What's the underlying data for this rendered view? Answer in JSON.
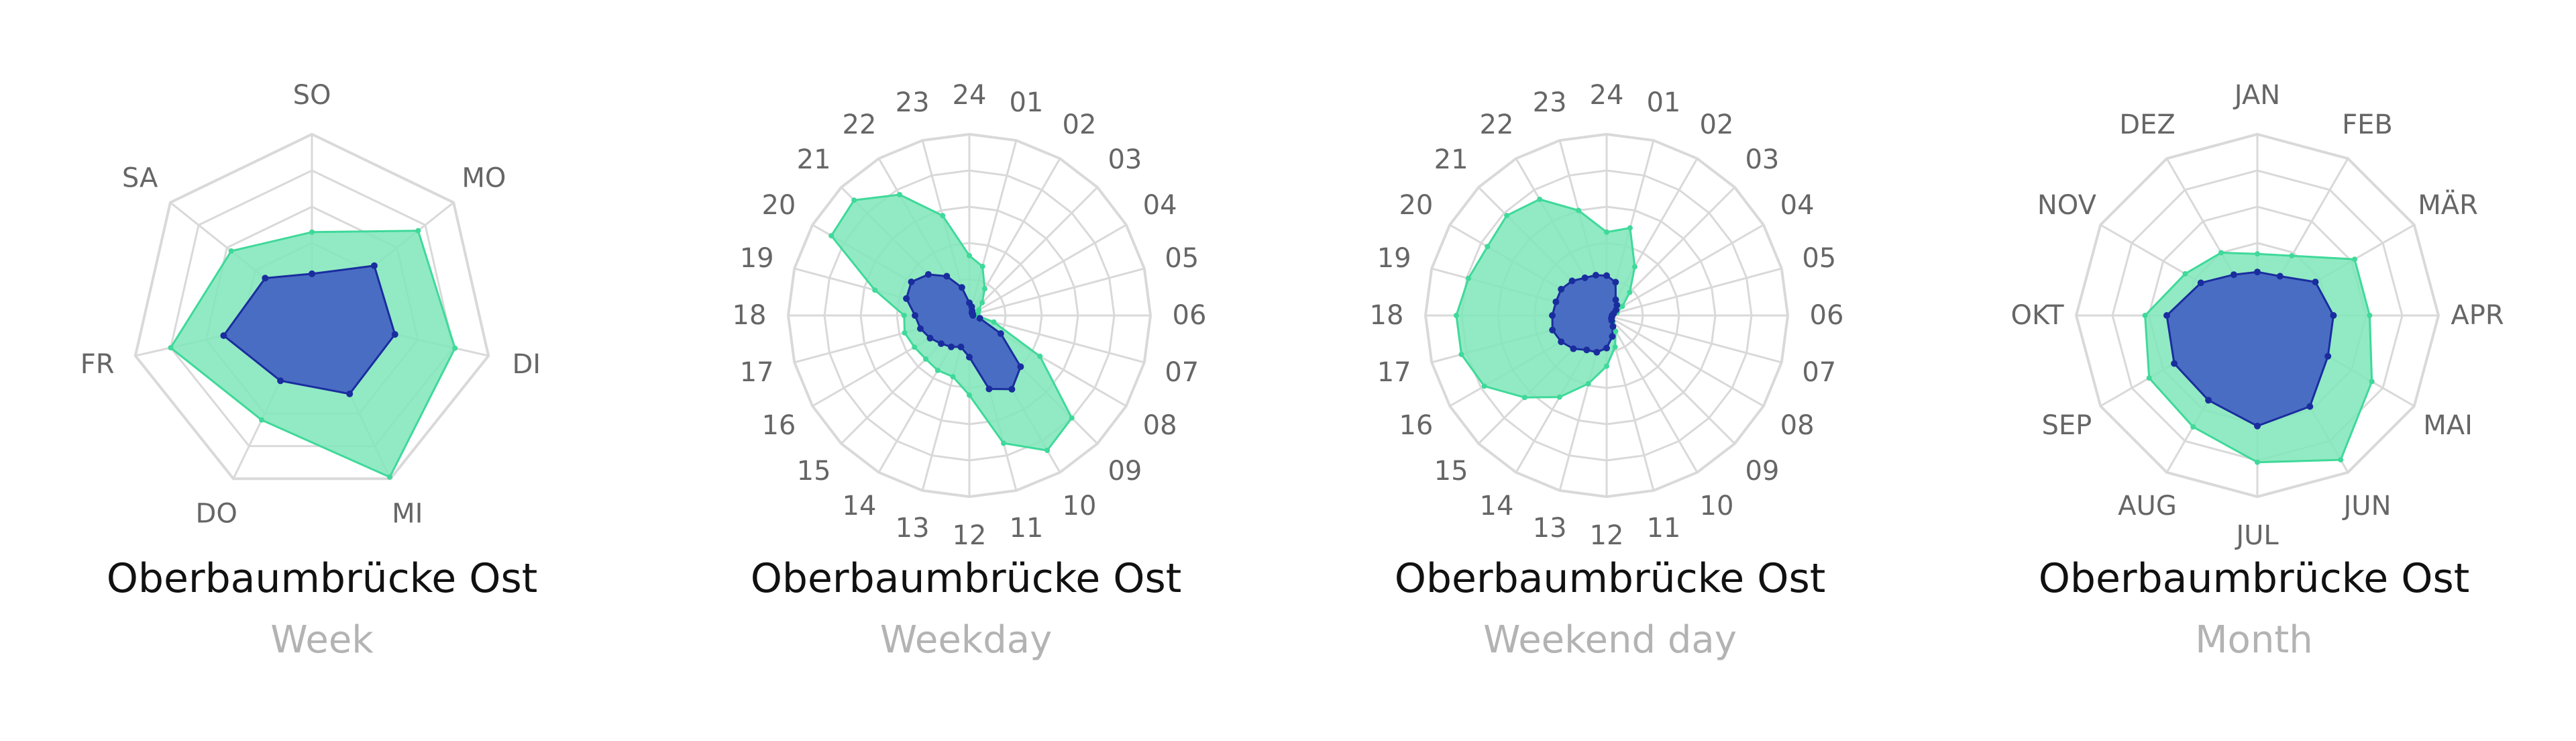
{
  "style": {
    "grid_color": "#d9d9d9",
    "outer_fill": "#7ee6b8",
    "outer_stroke": "#3fd99a",
    "inner_fill": "#4666c3",
    "inner_stroke": "#1a2d9e",
    "label_color": "#666666",
    "title_color": "#111111",
    "subtitle_color": "#b3b3b3"
  },
  "chart_data": [
    {
      "type": "radar",
      "title": "Oberbaumbrücke Ost",
      "subtitle": "Week",
      "categories": [
        "SO",
        "MO",
        "DI",
        "MI",
        "DO",
        "FR",
        "SA"
      ],
      "rmax": 1,
      "series": [
        {
          "values": [
            0.46,
            0.75,
            0.81,
            0.99,
            0.64,
            0.8,
            0.57
          ]
        },
        {
          "values": [
            0.23,
            0.44,
            0.47,
            0.48,
            0.4,
            0.5,
            0.33
          ]
        }
      ]
    },
    {
      "type": "radar",
      "title": "Oberbaumbrücke Ost",
      "subtitle": "Weekday",
      "categories": [
        "24",
        "01",
        "02",
        "03",
        "04",
        "05",
        "06",
        "07",
        "08",
        "09",
        "10",
        "11",
        "12",
        "13",
        "14",
        "15",
        "16",
        "17",
        "18",
        "19",
        "20",
        "21",
        "22",
        "23"
      ],
      "rmax": 1,
      "series": [
        {
          "values": [
            0.33,
            0.28,
            0.17,
            0.1,
            0.06,
            0.05,
            0.04,
            0.14,
            0.45,
            0.8,
            0.86,
            0.73,
            0.44,
            0.35,
            0.35,
            0.34,
            0.35,
            0.37,
            0.36,
            0.54,
            0.88,
            0.9,
            0.77,
            0.57
          ]
        },
        {
          "values": [
            0.07,
            0.05,
            0.03,
            0.02,
            0.02,
            0.02,
            0.02,
            0.06,
            0.2,
            0.4,
            0.47,
            0.42,
            0.23,
            0.18,
            0.2,
            0.22,
            0.25,
            0.28,
            0.3,
            0.36,
            0.37,
            0.32,
            0.25,
            0.16
          ]
        }
      ]
    },
    {
      "type": "radar",
      "title": "Oberbaumbrücke Ost",
      "subtitle": "Weekend day",
      "categories": [
        "24",
        "01",
        "02",
        "03",
        "04",
        "05",
        "06",
        "07",
        "08",
        "09",
        "10",
        "11",
        "12",
        "13",
        "14",
        "15",
        "16",
        "17",
        "18",
        "19",
        "20",
        "21",
        "22",
        "23"
      ],
      "rmax": 1,
      "series": [
        {
          "values": [
            0.46,
            0.5,
            0.31,
            0.18,
            0.1,
            0.06,
            0.03,
            0.03,
            0.03,
            0.05,
            0.1,
            0.18,
            0.28,
            0.39,
            0.52,
            0.64,
            0.78,
            0.83,
            0.83,
            0.79,
            0.76,
            0.78,
            0.74,
            0.6
          ]
        },
        {
          "values": [
            0.22,
            0.19,
            0.1,
            0.08,
            0.06,
            0.04,
            0.03,
            0.03,
            0.03,
            0.04,
            0.07,
            0.12,
            0.18,
            0.21,
            0.22,
            0.26,
            0.29,
            0.31,
            0.3,
            0.29,
            0.29,
            0.27,
            0.24,
            0.23
          ]
        }
      ]
    },
    {
      "type": "radar",
      "title": "Oberbaumbrücke Ost",
      "subtitle": "Month",
      "categories": [
        "JAN",
        "FEB",
        "MÄR",
        "APR",
        "MAI",
        "JUN",
        "JUL",
        "AUG",
        "SEP",
        "OKT",
        "NOV",
        "DEZ"
      ],
      "rmax": 1,
      "series": [
        {
          "values": [
            0.34,
            0.38,
            0.62,
            0.62,
            0.73,
            0.92,
            0.81,
            0.71,
            0.69,
            0.62,
            0.46,
            0.4
          ]
        },
        {
          "values": [
            0.24,
            0.25,
            0.37,
            0.42,
            0.45,
            0.58,
            0.61,
            0.54,
            0.53,
            0.5,
            0.36,
            0.26
          ]
        }
      ]
    }
  ]
}
